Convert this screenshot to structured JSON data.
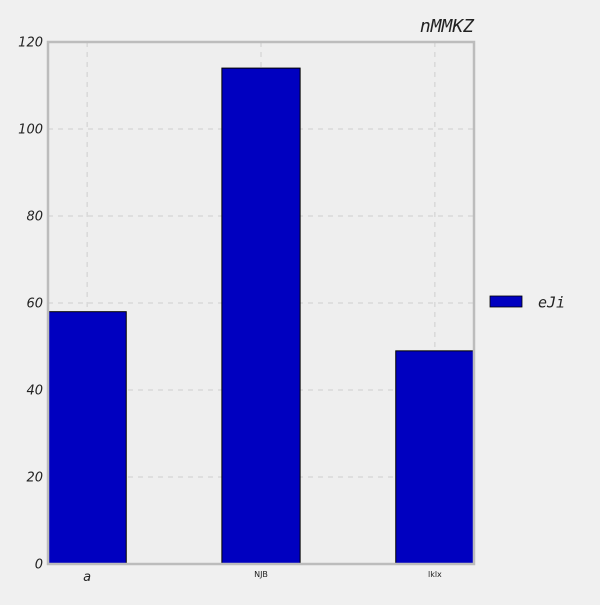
{
  "chart_data": {
    "type": "bar",
    "title": "nMMKZ",
    "xlabel": "",
    "ylabel": "",
    "categories": [
      "a",
      "NJB",
      "lklx"
    ],
    "series": [
      {
        "name": "eJi",
        "values": [
          58,
          114,
          49
        ],
        "color": "#0000c0"
      }
    ],
    "ylim": [
      0,
      120
    ],
    "yticks": [
      0,
      20,
      40,
      60,
      80,
      100,
      120
    ],
    "grid": true,
    "legend_position": "right"
  },
  "colors": {
    "plot_background": "#eeeeee",
    "page_background": "#f0f0f0",
    "axes_border": "#bcbcbc",
    "grid": "#cfcfcf",
    "bar_edge": "#000000"
  }
}
